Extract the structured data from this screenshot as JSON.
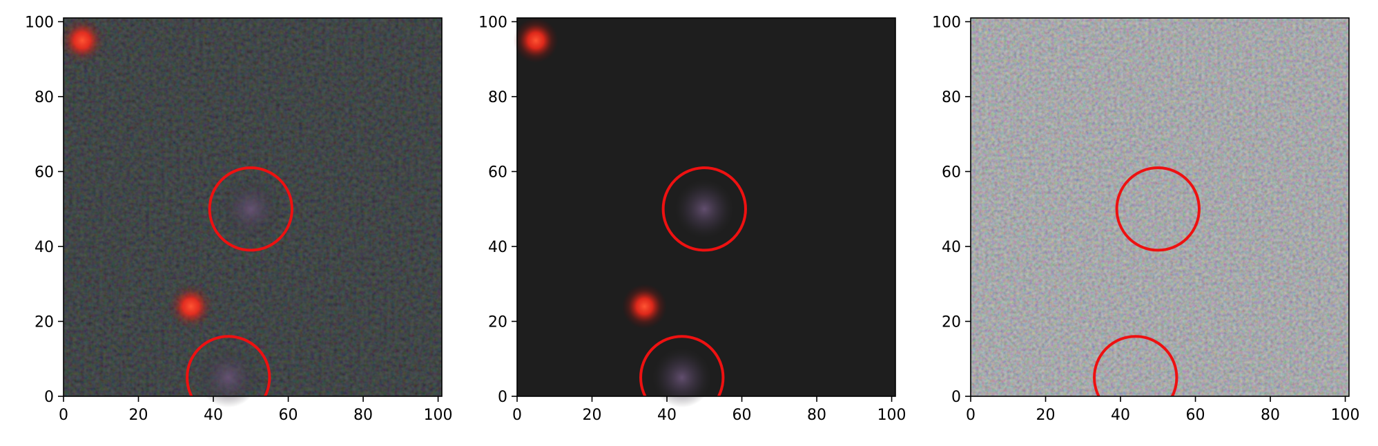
{
  "figure": {
    "panels": [
      {
        "id": "observed",
        "background": "#1f2120",
        "noise": "dark",
        "x_ticks": [
          "0",
          "20",
          "40",
          "60",
          "80",
          "100"
        ],
        "y_ticks": [
          "0",
          "20",
          "40",
          "60",
          "80",
          "100"
        ]
      },
      {
        "id": "model",
        "background": "#1e1e1e",
        "noise": "none",
        "x_ticks": [
          "0",
          "20",
          "40",
          "60",
          "80",
          "100"
        ],
        "y_ticks": [
          "0",
          "20",
          "40",
          "60",
          "80",
          "100"
        ]
      },
      {
        "id": "residual",
        "background": "#8e8b8e",
        "noise": "bright",
        "x_ticks": [
          "0",
          "20",
          "40",
          "60",
          "80",
          "100"
        ],
        "y_ticks": [
          "0",
          "20",
          "40",
          "60",
          "80",
          "100"
        ]
      }
    ],
    "axis_range": {
      "x": [
        0,
        101
      ],
      "y": [
        0,
        101
      ]
    },
    "sources": [
      {
        "x": 5,
        "y": 95,
        "color": "#ff3a22",
        "kind": "star"
      },
      {
        "x": 34,
        "y": 24,
        "color": "#ff3a22",
        "kind": "star"
      },
      {
        "x": 50,
        "y": 50,
        "color": "#5a4a6a",
        "kind": "galaxy"
      },
      {
        "x": 44,
        "y": 5,
        "color": "#5a4a6a",
        "kind": "galaxy"
      }
    ],
    "circles": [
      {
        "x": 50,
        "y": 50,
        "r": 11,
        "color": "#ee1111"
      },
      {
        "x": 44,
        "y": 5,
        "r": 11,
        "color": "#ee1111"
      }
    ]
  }
}
